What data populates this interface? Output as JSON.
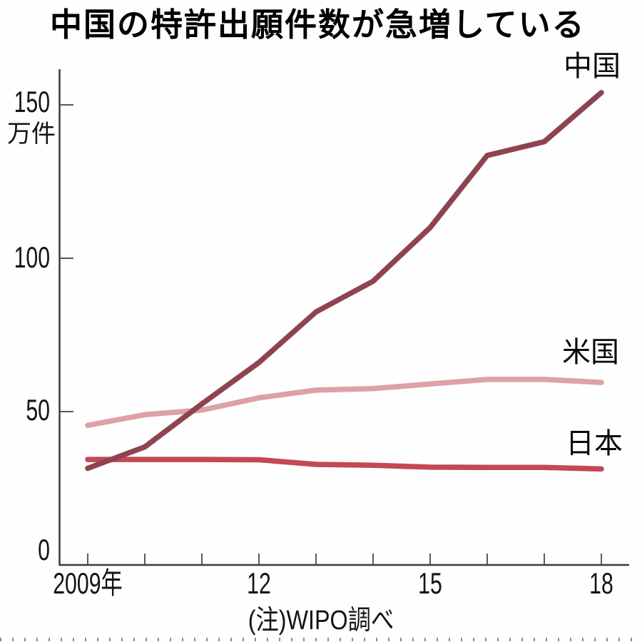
{
  "title": "中国の特許出願件数が急増している",
  "source_note": "(注)WIPO調べ",
  "y_axis": {
    "unit_label": "万件",
    "tick_labels": [
      "150",
      "100",
      "50",
      "0"
    ]
  },
  "x_axis": {
    "tick_labels": [
      "2009年",
      "12",
      "15",
      "18"
    ]
  },
  "series_labels": {
    "china": "中国",
    "us": "米国",
    "japan": "日本"
  },
  "colors": {
    "china_line": "#8e4450",
    "us_line": "#dda1a7",
    "japan_line": "#c44855",
    "axis": "#3c3c3c",
    "text": "#111111",
    "dotted_border": "#8a8a8a"
  },
  "chart_data": {
    "type": "line",
    "title": "中国の特許出願件数が急増している",
    "x": [
      2009,
      2010,
      2011,
      2012,
      2013,
      2014,
      2015,
      2016,
      2017,
      2018
    ],
    "series": [
      {
        "name": "中国",
        "color": "#8e4450",
        "values": [
          31.5,
          38.5,
          52.5,
          66,
          82.5,
          92.5,
          110,
          133.5,
          138,
          154
        ]
      },
      {
        "name": "米国",
        "color": "#dda1a7",
        "values": [
          45.5,
          49,
          50.5,
          54.5,
          57,
          57.5,
          59,
          60.5,
          60.5,
          59.5
        ]
      },
      {
        "name": "日本",
        "color": "#c44855",
        "values": [
          34.4,
          34.4,
          34.4,
          34.3,
          32.8,
          32.5,
          31.9,
          31.8,
          31.8,
          31.3
        ]
      }
    ],
    "xlabel": "",
    "ylabel": "万件",
    "ylim": [
      0,
      160
    ],
    "xlim": [
      2009,
      2018
    ],
    "y_ticks": [
      0,
      50,
      100,
      150
    ],
    "x_tick_years": [
      2009,
      2010,
      2011,
      2012,
      2013,
      2014,
      2015,
      2016,
      2017,
      2018
    ],
    "grid": false,
    "legend": "direct labels at line ends",
    "source": "(注)WIPO調べ"
  }
}
